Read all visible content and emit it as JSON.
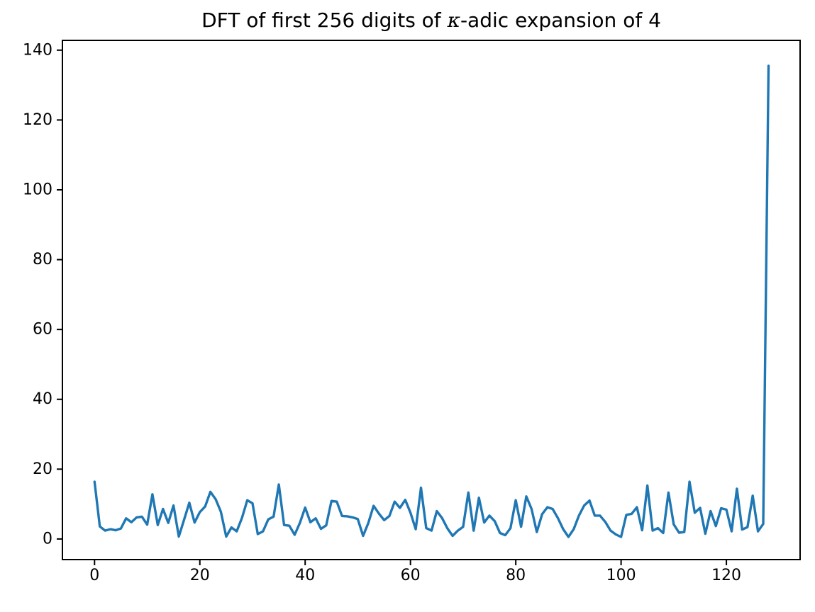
{
  "figure": {
    "background": "#ffffff",
    "title_parts": {
      "prefix": "DFT of first 256 digits of ",
      "kappa": "κ",
      "suffix": "-adic expansion of 4"
    }
  },
  "chart_data": {
    "type": "line",
    "title": "DFT of first 256 digits of κ-adic expansion of 4",
    "xlabel": "",
    "ylabel": "",
    "x_ticks": [
      0,
      20,
      40,
      60,
      80,
      100,
      120
    ],
    "y_ticks": [
      0,
      20,
      40,
      60,
      80,
      100,
      120,
      140
    ],
    "xlim": [
      -6.1,
      134.0
    ],
    "ylim": [
      -5.9,
      142.8
    ],
    "grid": false,
    "legend": false,
    "line_color": "#1f77b4",
    "axis_color": "#000000",
    "x_start": 0,
    "x_step": 1,
    "values": [
      16.4,
      3.6,
      2.4,
      2.8,
      2.5,
      3.0,
      5.9,
      4.8,
      6.2,
      6.4,
      4.1,
      12.8,
      4.0,
      8.6,
      4.6,
      9.6,
      0.7,
      5.5,
      10.4,
      4.7,
      7.7,
      9.3,
      13.5,
      11.4,
      7.8,
      0.7,
      3.3,
      2.2,
      6.0,
      11.1,
      10.2,
      1.4,
      2.2,
      5.6,
      6.4,
      15.6,
      4.0,
      3.8,
      1.2,
      4.6,
      9.0,
      4.8,
      5.9,
      2.9,
      3.9,
      10.9,
      10.7,
      6.6,
      6.5,
      6.2,
      5.7,
      0.9,
      4.6,
      9.5,
      7.3,
      5.4,
      6.6,
      10.7,
      8.9,
      11.2,
      7.5,
      2.8,
      14.7,
      3.1,
      2.4,
      8.0,
      6.0,
      3.1,
      0.9,
      2.4,
      3.5,
      13.3,
      2.4,
      11.8,
      4.7,
      6.7,
      5.1,
      1.7,
      1.1,
      3.1,
      11.1,
      3.5,
      12.2,
      8.6,
      2.0,
      7.1,
      9.1,
      8.6,
      6.0,
      2.8,
      0.6,
      2.8,
      6.7,
      9.6,
      11.0,
      6.7,
      6.7,
      4.9,
      2.4,
      1.3,
      0.6,
      6.9,
      7.2,
      9.1,
      2.5,
      15.3,
      2.4,
      3.1,
      1.7,
      13.3,
      4.2,
      1.8,
      2.0,
      16.4,
      7.5,
      8.9,
      1.5,
      8.0,
      3.7,
      8.8,
      8.4,
      2.2,
      14.4,
      2.7,
      3.4,
      12.4,
      2.2,
      4.3,
      135.5
    ]
  }
}
